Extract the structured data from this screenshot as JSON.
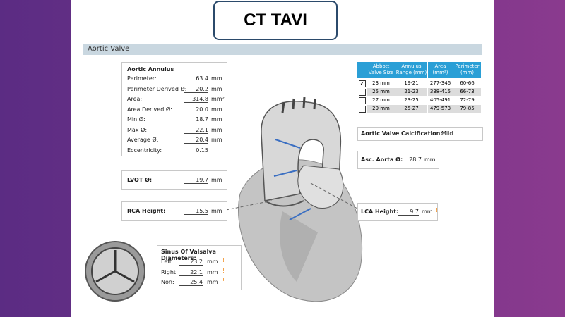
{
  "header": {
    "title": "CT TAVI"
  },
  "section": "Aortic Valve",
  "annulus": {
    "title": "Aortic Annulus",
    "rows": [
      {
        "label": "Perimeter:",
        "value": "63.4",
        "unit": "mm"
      },
      {
        "label": "Perimeter Derived Ø:",
        "value": "20.2",
        "unit": "mm"
      },
      {
        "label": "Area:",
        "value": "314.8",
        "unit": "mm²"
      },
      {
        "label": "Area Derived Ø:",
        "value": "20.0",
        "unit": "mm"
      },
      {
        "label": "Min Ø:",
        "value": "18.7",
        "unit": "mm"
      },
      {
        "label": "Max Ø:",
        "value": "22.1",
        "unit": "mm"
      },
      {
        "label": "Average Ø:",
        "value": "20.4",
        "unit": "mm"
      },
      {
        "label": "Eccentricity:",
        "value": "0.15"
      }
    ]
  },
  "lvot": {
    "label": "LVOT Ø:",
    "value": "19.7",
    "unit": "mm"
  },
  "rca": {
    "label": "RCA Height:",
    "value": "15.5",
    "unit": "mm"
  },
  "sinus": {
    "title": "Sinus Of Valsalva Diameters:",
    "rows": [
      {
        "label": "Left:",
        "value": "23.2",
        "unit": "mm",
        "flag": "!"
      },
      {
        "label": "Right:",
        "value": "22.1",
        "unit": "mm",
        "flag": "!"
      },
      {
        "label": "Non:",
        "value": "25.4",
        "unit": "mm",
        "flag": "!"
      }
    ]
  },
  "valve_table": {
    "columns": [
      "Abbott Valve Size",
      "Annulus Range (mm)",
      "Area (mm²)",
      "Perimeter (mm)"
    ],
    "rows": [
      [
        "23 mm",
        "19-21",
        "277-346",
        "60-66"
      ],
      [
        "25 mm",
        "21-23",
        "338-415",
        "66-73"
      ],
      [
        "27 mm",
        "23-25",
        "405-491",
        "72-79"
      ],
      [
        "29 mm",
        "25-27",
        "479-573",
        "79-85"
      ]
    ],
    "selected": 0
  },
  "calcification": {
    "label": "Aortic Valve Calcification:",
    "value": "Mild"
  },
  "asc_aorta": {
    "label": "Asc. Aorta Ø:",
    "value": "28.7",
    "unit": "mm"
  },
  "lca": {
    "label": "LCA Height:",
    "value": "9.7",
    "unit": "mm",
    "flag": "!"
  }
}
